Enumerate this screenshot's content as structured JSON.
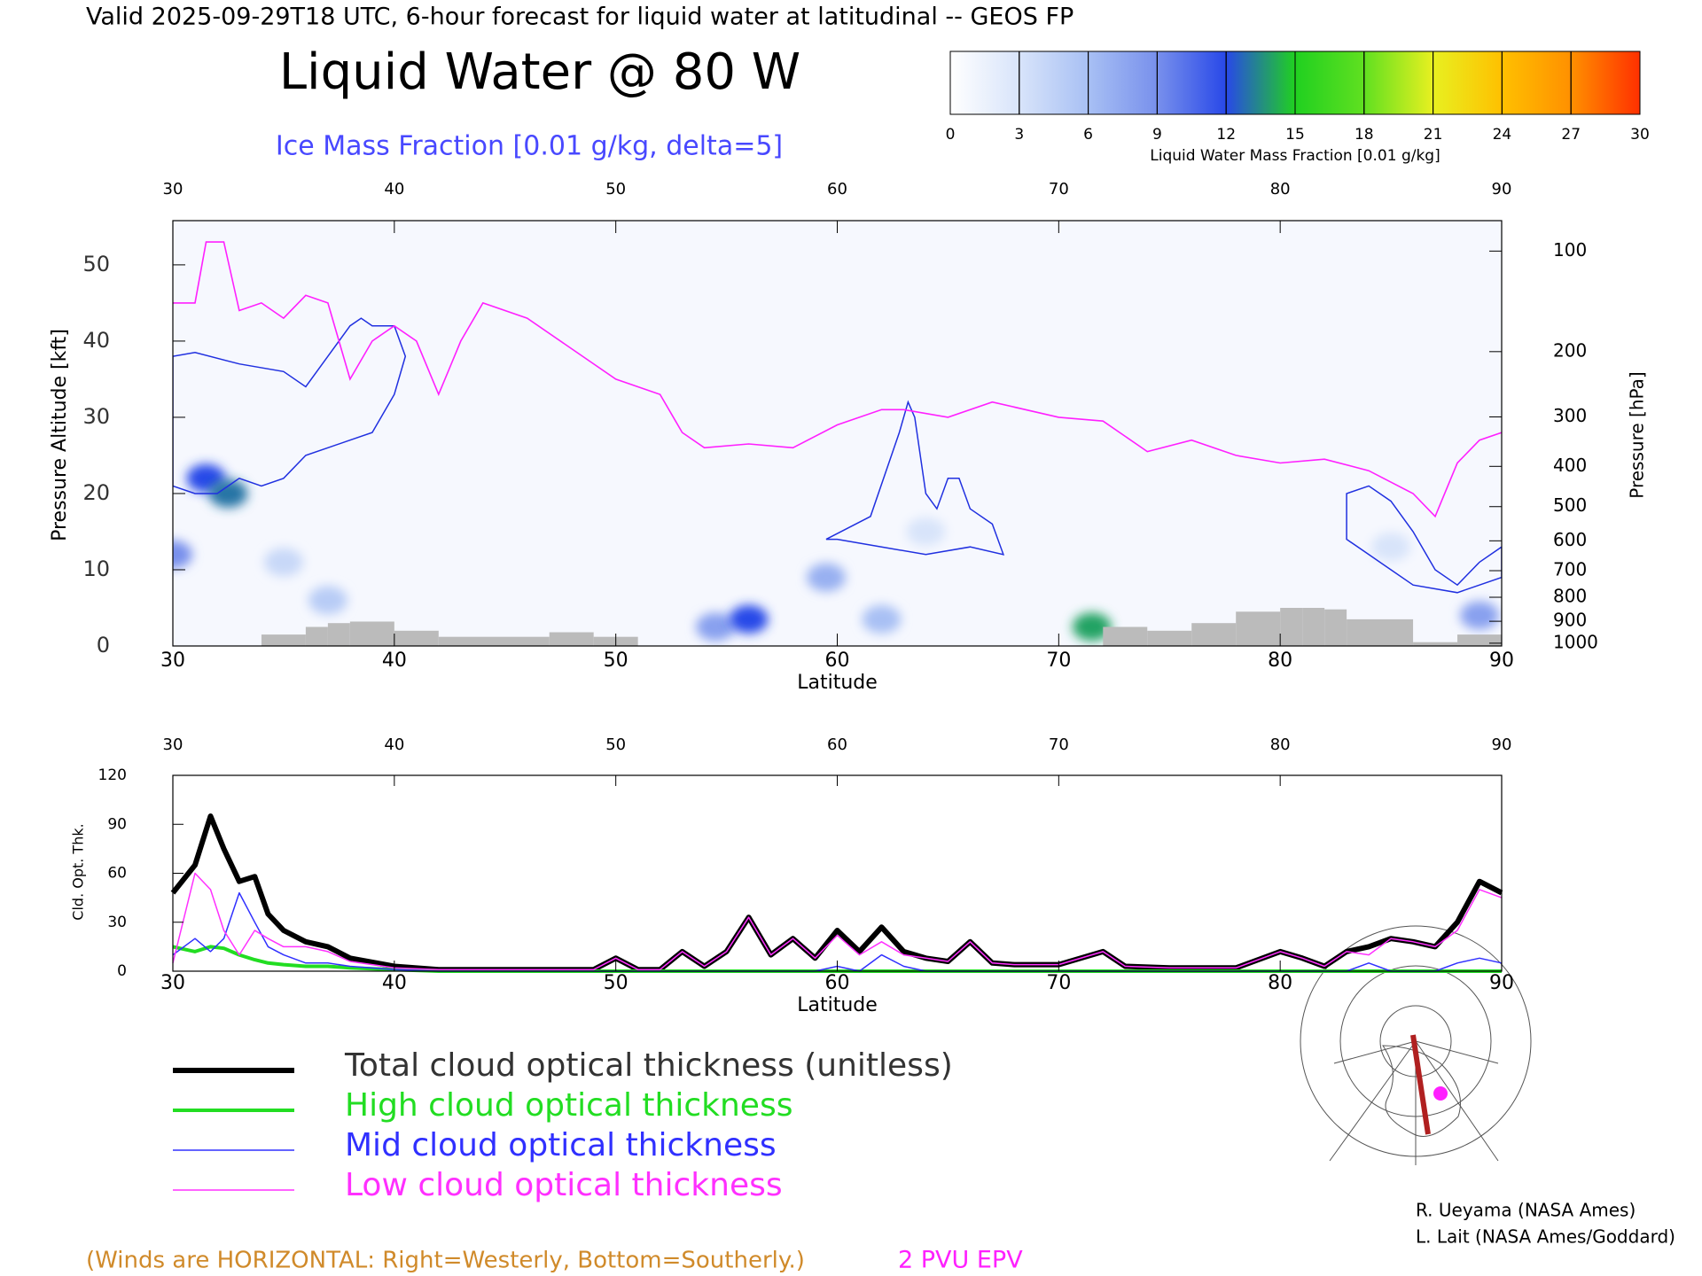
{
  "header": "Valid 2025-09-29T18 UTC, 6-hour forecast for liquid water at latitudinal -- GEOS FP",
  "chart_data": [
    {
      "type": "cross-section",
      "title": "Liquid Water @ 80 W",
      "subtitle": "Ice Mass Fraction [0.01 g/kg, delta=5]",
      "xlabel": "Latitude",
      "xlim": [
        30,
        90
      ],
      "xticks": [
        30,
        40,
        50,
        60,
        70,
        80,
        90
      ],
      "ylabel": "Pressure Altitude [kft]",
      "ylim": [
        0,
        55.8
      ],
      "yticks": [
        0,
        10,
        20,
        30,
        40,
        50
      ],
      "y2label": "Pressure [hPa]",
      "y2scale": "pressure",
      "y2ticks": [
        100,
        200,
        300,
        400,
        500,
        600,
        700,
        800,
        900,
        1000
      ],
      "colorbar": {
        "label": "Liquid Water Mass Fraction [0.01 g/kg]",
        "lim": [
          0,
          30
        ],
        "ticks": [
          0,
          3,
          6,
          9,
          12,
          15,
          18,
          21,
          24,
          27,
          30
        ],
        "colors": [
          "#ffffff",
          "#d8e4fa",
          "#a8c0f4",
          "#7890ec",
          "#2848e8",
          "#20d020",
          "#60e020",
          "#e8f020",
          "#ffc000",
          "#ff9000",
          "#ff3000"
        ]
      },
      "liquid_water": {
        "lat": [
          30,
          31.5,
          32.5,
          35,
          37,
          54.5,
          56,
          59.5,
          62,
          64,
          71.5,
          85,
          89
        ],
        "alt": [
          12,
          22,
          20,
          11,
          6,
          2.5,
          3.5,
          9,
          3.5,
          15,
          2.5,
          13,
          4
        ],
        "values": [
          9,
          12,
          13,
          4,
          5,
          8,
          12,
          7,
          6,
          3,
          14,
          3,
          8
        ]
      },
      "ice_contours": {
        "color": "#2030e0",
        "shapes": [
          {
            "x": [
              30,
              31,
              33,
              35,
              36,
              37,
              38,
              38.5,
              39,
              40,
              40.5,
              40,
              39,
              38,
              37,
              36,
              35,
              34,
              33,
              32,
              31,
              30
            ],
            "y": [
              38,
              38.5,
              37,
              36,
              34,
              38,
              42,
              43,
              42,
              42,
              38,
              33,
              28,
              27,
              26,
              25,
              22,
              21,
              22,
              20,
              20,
              21
            ]
          },
          {
            "x": [
              59.5,
              61.5,
              62.8,
              63.2,
              63.5,
              64,
              64.5,
              65,
              65.5,
              66,
              67,
              67.5,
              66,
              64,
              62,
              60,
              59.5
            ],
            "y": [
              14,
              17,
              28,
              32,
              30,
              20,
              18,
              22,
              22,
              18,
              16,
              12,
              13,
              12,
              13,
              14,
              14
            ]
          },
          {
            "x": [
              83,
              83,
              84,
              85,
              86,
              87,
              88,
              89,
              90,
              90,
              88,
              86,
              85,
              84,
              83
            ],
            "y": [
              14,
              20,
              21,
              19,
              15,
              10,
              8,
              11,
              13,
              9,
              7,
              8,
              10,
              12,
              14
            ]
          }
        ]
      },
      "epv": {
        "name": "2 PVU EPV",
        "color": "#ff20ff",
        "x": [
          30,
          31,
          31.5,
          32.3,
          33,
          34,
          35,
          36,
          37,
          38,
          39,
          40,
          41,
          42,
          43,
          44,
          46,
          48,
          50,
          52,
          53,
          54,
          56,
          58,
          60,
          62,
          63,
          65,
          67,
          70,
          72,
          74,
          76,
          78,
          80,
          82,
          84,
          86,
          87,
          88,
          89,
          90
        ],
        "values": [
          45,
          45,
          53,
          53,
          44,
          45,
          43,
          46,
          45,
          35,
          40,
          42,
          40,
          33,
          40,
          45,
          43,
          39,
          35,
          33,
          28,
          26,
          26.5,
          26,
          29,
          31,
          31,
          30,
          32,
          30,
          29.5,
          25.5,
          27,
          25,
          24,
          24.5,
          23,
          20,
          17,
          24,
          27,
          28
        ]
      },
      "terrain": {
        "color": "#bbbbbb",
        "bins": [
          34,
          36,
          37,
          38,
          40,
          42,
          47,
          49,
          51,
          72,
          74,
          76,
          78,
          80,
          81,
          82,
          83,
          86,
          88,
          90
        ],
        "values": [
          1.5,
          2.5,
          3,
          3.2,
          2,
          1.2,
          1.8,
          1.2,
          0,
          2.5,
          2,
          3,
          4.5,
          5,
          5,
          4.8,
          3.5,
          0.5,
          1.5
        ]
      },
      "wind_note": "(Winds are HORIZONTAL: Right=Westerly, Bottom=Southerly.)"
    },
    {
      "type": "line",
      "xlabel": "Latitude",
      "ylabel": "Cld. Opt. Thk.",
      "xlim": [
        30,
        90
      ],
      "xticks": [
        30,
        40,
        50,
        60,
        70,
        80,
        90
      ],
      "ylim": [
        0,
        120
      ],
      "yticks": [
        0,
        30,
        60,
        90,
        120
      ],
      "legend": true,
      "x": [
        30,
        31,
        31.7,
        32.3,
        33,
        33.7,
        34.3,
        35,
        36,
        37,
        38,
        40,
        42,
        45,
        49,
        50,
        51,
        52,
        53,
        54,
        55,
        56,
        57,
        58,
        59,
        60,
        61,
        62,
        63,
        64,
        65,
        66,
        67,
        68,
        70,
        72,
        73,
        75,
        78,
        80,
        81,
        82,
        83,
        84,
        85,
        86,
        87,
        88,
        89,
        90
      ],
      "series": [
        {
          "name": "Total cloud optical thickness (unitless)",
          "color": "#000000",
          "width": 6,
          "values": [
            48,
            65,
            95,
            75,
            55,
            58,
            35,
            25,
            18,
            15,
            8,
            3,
            1,
            1,
            1,
            8,
            1,
            1,
            12,
            3,
            12,
            33,
            10,
            20,
            8,
            25,
            12,
            27,
            12,
            8,
            6,
            18,
            5,
            4,
            4,
            12,
            3,
            2,
            2,
            12,
            8,
            3,
            12,
            15,
            20,
            18,
            15,
            30,
            55,
            48
          ]
        },
        {
          "name": "High cloud optical thickness",
          "color": "#22dd22",
          "width": 4,
          "values": [
            15,
            12,
            15,
            14,
            10,
            7,
            5,
            4,
            3,
            3,
            2,
            1,
            0,
            0,
            0,
            0,
            0,
            0,
            0,
            0,
            0,
            0,
            0,
            0,
            0,
            0,
            0,
            0,
            0,
            0,
            0,
            0,
            0,
            0,
            0,
            0,
            0,
            0,
            0,
            0,
            0,
            0,
            0,
            0,
            0,
            0,
            0,
            0,
            0,
            0
          ]
        },
        {
          "name": "Mid cloud optical thickness",
          "color": "#3030ff",
          "width": 1.5,
          "values": [
            10,
            20,
            12,
            20,
            48,
            30,
            15,
            10,
            5,
            5,
            3,
            1,
            0,
            0,
            0,
            0,
            0,
            0,
            0,
            0,
            0,
            0,
            0,
            0,
            0,
            3,
            0,
            10,
            3,
            0,
            0,
            0,
            0,
            0,
            0,
            0,
            0,
            0,
            0,
            0,
            0,
            0,
            0,
            5,
            0,
            0,
            0,
            5,
            8,
            5
          ]
        },
        {
          "name": "Low cloud optical thickness",
          "color": "#ff30ff",
          "width": 1.5,
          "values": [
            5,
            60,
            50,
            25,
            10,
            25,
            20,
            15,
            15,
            12,
            6,
            2,
            1,
            1,
            1,
            8,
            1,
            1,
            12,
            3,
            12,
            33,
            10,
            20,
            8,
            22,
            10,
            18,
            10,
            8,
            6,
            18,
            5,
            4,
            4,
            12,
            3,
            2,
            2,
            12,
            8,
            3,
            12,
            10,
            20,
            18,
            15,
            25,
            50,
            45
          ]
        }
      ]
    }
  ],
  "credits": [
    "R. Ueyama (NASA Ames)",
    "L. Lait (NASA Ames/Goddard)"
  ]
}
